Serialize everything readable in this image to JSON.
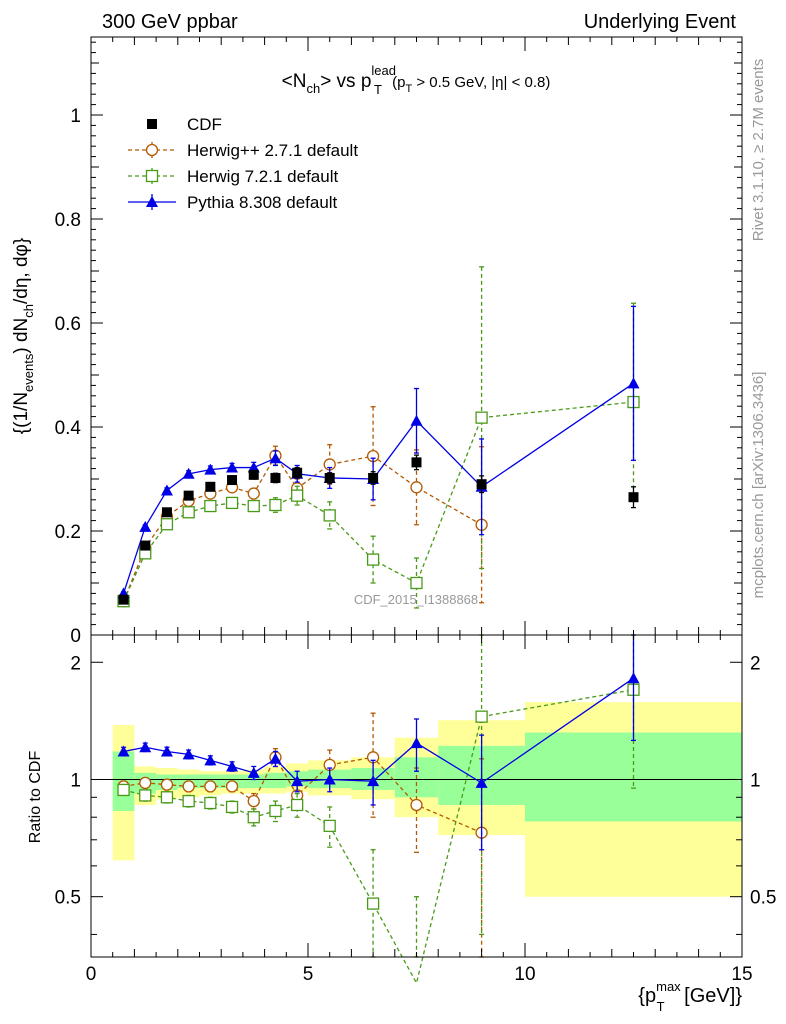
{
  "header": {
    "left": "300 GeV ppbar",
    "right": "Underlying Event"
  },
  "side_labels": {
    "rivet": "Rivet 3.1.10, ≥ 2.7M events",
    "mcplots": "mcplots.cern.ch [arXiv:1306.3436]"
  },
  "watermark": "CDF_2015_I1388868",
  "colors": {
    "cdf": "#000000",
    "herwigpp": "#b35900",
    "herwig7": "#4a9a1a",
    "pythia": "#0000e6",
    "band_outer": "#ffff99",
    "band_inner": "#99ff99"
  },
  "chart_data": [
    {
      "type": "scatter",
      "title": "<N_ch> vs p_T^lead (p_T > 0.5 GeV, |η| < 0.8)",
      "ylabel": "{(1/N_events) dN_ch/dη, dφ}",
      "xlim": [
        0,
        15
      ],
      "ylim": [
        0,
        1.15
      ],
      "yticks": [
        "0",
        "0.2",
        "0.4",
        "0.6",
        "0.8",
        "1"
      ],
      "legend_position": "top-left",
      "legend": [
        "CDF",
        "Herwig++ 2.7.1 default",
        "Herwig 7.2.1 default",
        "Pythia 8.308 default"
      ],
      "x": [
        0.75,
        1.25,
        1.75,
        2.25,
        2.75,
        3.25,
        3.75,
        4.25,
        4.75,
        5.5,
        6.5,
        7.5,
        9.0,
        12.5
      ],
      "xbins": [
        [
          0.5,
          1.0
        ],
        [
          1.0,
          1.5
        ],
        [
          1.5,
          2.0
        ],
        [
          2.0,
          2.5
        ],
        [
          2.5,
          3.0
        ],
        [
          3.0,
          3.5
        ],
        [
          3.5,
          4.0
        ],
        [
          4.0,
          4.5
        ],
        [
          4.5,
          5.0
        ],
        [
          5.0,
          6.0
        ],
        [
          6.0,
          7.0
        ],
        [
          7.0,
          8.0
        ],
        [
          8.0,
          10.0
        ],
        [
          10.0,
          15.0
        ]
      ],
      "series": [
        {
          "name": "CDF",
          "values": [
            0.068,
            0.172,
            0.236,
            0.268,
            0.285,
            0.298,
            0.308,
            0.302,
            0.312,
            0.302,
            0.302,
            0.332,
            0.29,
            0.265
          ],
          "err": [
            0.003,
            0.004,
            0.005,
            0.006,
            0.006,
            0.007,
            0.008,
            0.009,
            0.01,
            0.01,
            0.012,
            0.014,
            0.016,
            0.02
          ]
        },
        {
          "name": "Herwig++ 2.7.1 default",
          "values": [
            0.065,
            0.168,
            0.228,
            0.258,
            0.272,
            0.284,
            0.272,
            0.345,
            0.282,
            0.328,
            0.344,
            0.284,
            0.212,
            null
          ],
          "err": [
            0.003,
            0.005,
            0.005,
            0.006,
            0.007,
            0.008,
            0.01,
            0.018,
            0.018,
            0.038,
            0.095,
            0.072,
            0.15,
            null
          ]
        },
        {
          "name": "Herwig 7.2.1 default",
          "values": [
            0.065,
            0.157,
            0.213,
            0.236,
            0.248,
            0.254,
            0.248,
            0.25,
            0.268,
            0.23,
            0.145,
            0.1,
            0.418,
            0.448
          ],
          "err": [
            0.003,
            0.005,
            0.006,
            0.006,
            0.007,
            0.008,
            0.01,
            0.014,
            0.018,
            0.026,
            0.045,
            0.048,
            0.29,
            0.19
          ]
        },
        {
          "name": "Pythia 8.308 default",
          "values": [
            0.08,
            0.208,
            0.278,
            0.31,
            0.318,
            0.322,
            0.322,
            0.34,
            0.31,
            0.302,
            0.3,
            0.412,
            0.285,
            0.484
          ],
          "err": [
            0.003,
            0.004,
            0.005,
            0.006,
            0.007,
            0.008,
            0.01,
            0.014,
            0.016,
            0.02,
            0.04,
            0.062,
            0.092,
            0.148
          ]
        }
      ]
    },
    {
      "type": "scatter",
      "title": "",
      "xlabel": "{p_T^max [GeV]}",
      "ylabel": "Ratio to CDF",
      "xlim": [
        0,
        15
      ],
      "ylim": [
        0.35,
        2.35
      ],
      "xticks": [
        "0",
        "5",
        "10",
        "15"
      ],
      "yticks": [
        "0.5",
        "1",
        "2"
      ],
      "x": [
        0.75,
        1.25,
        1.75,
        2.25,
        2.75,
        3.25,
        3.75,
        4.25,
        4.75,
        5.5,
        6.5,
        7.5,
        9.0,
        12.5
      ],
      "xbins": [
        [
          0.5,
          1.0
        ],
        [
          1.0,
          1.5
        ],
        [
          1.5,
          2.0
        ],
        [
          2.0,
          2.5
        ],
        [
          2.5,
          3.0
        ],
        [
          3.0,
          3.5
        ],
        [
          3.5,
          4.0
        ],
        [
          4.0,
          4.5
        ],
        [
          4.5,
          5.0
        ],
        [
          5.0,
          6.0
        ],
        [
          6.0,
          7.0
        ],
        [
          7.0,
          8.0
        ],
        [
          8.0,
          10.0
        ],
        [
          10.0,
          15.0
        ]
      ],
      "band_outer": [
        [
          0.62,
          1.38
        ],
        [
          0.86,
          1.08
        ],
        [
          0.89,
          1.07
        ],
        [
          0.9,
          1.06
        ],
        [
          0.91,
          1.05
        ],
        [
          0.92,
          1.05
        ],
        [
          0.92,
          1.06
        ],
        [
          0.92,
          1.08
        ],
        [
          0.93,
          1.1
        ],
        [
          0.91,
          1.12
        ],
        [
          0.89,
          1.14
        ],
        [
          0.8,
          1.28
        ],
        [
          0.72,
          1.42
        ],
        [
          0.5,
          1.58
        ]
      ],
      "band_inner": [
        [
          0.83,
          1.18
        ],
        [
          0.92,
          1.04
        ],
        [
          0.94,
          1.03
        ],
        [
          0.95,
          1.03
        ],
        [
          0.95,
          1.03
        ],
        [
          0.95,
          1.03
        ],
        [
          0.95,
          1.03
        ],
        [
          0.95,
          1.04
        ],
        [
          0.96,
          1.05
        ],
        [
          0.95,
          1.06
        ],
        [
          0.94,
          1.07
        ],
        [
          0.9,
          1.14
        ],
        [
          0.86,
          1.22
        ],
        [
          0.78,
          1.32
        ]
      ],
      "series": [
        {
          "name": "Herwig++ 2.7.1 default",
          "values": [
            0.96,
            0.98,
            0.97,
            0.96,
            0.96,
            0.96,
            0.88,
            1.14,
            0.91,
            1.09,
            1.14,
            0.86,
            0.73,
            null
          ],
          "err": [
            0.03,
            0.03,
            0.03,
            0.03,
            0.03,
            0.03,
            0.04,
            0.06,
            0.06,
            0.1,
            0.34,
            0.21,
            0.4,
            null
          ]
        },
        {
          "name": "Herwig 7.2.1 default",
          "values": [
            0.94,
            0.91,
            0.9,
            0.88,
            0.87,
            0.85,
            0.8,
            0.83,
            0.86,
            0.76,
            0.48,
            0.3,
            1.45,
            1.7
          ],
          "err": [
            0.03,
            0.03,
            0.03,
            0.03,
            0.03,
            0.03,
            0.04,
            0.05,
            0.06,
            0.09,
            0.18,
            0.2,
            1.05,
            0.75
          ]
        },
        {
          "name": "Pythia 8.308 default",
          "values": [
            1.18,
            1.21,
            1.18,
            1.16,
            1.12,
            1.08,
            1.04,
            1.13,
            0.99,
            1.0,
            0.99,
            1.24,
            0.98,
            1.82
          ],
          "err": [
            0.03,
            0.03,
            0.03,
            0.03,
            0.03,
            0.03,
            0.04,
            0.05,
            0.06,
            0.07,
            0.13,
            0.19,
            0.32,
            0.56
          ]
        }
      ]
    }
  ]
}
